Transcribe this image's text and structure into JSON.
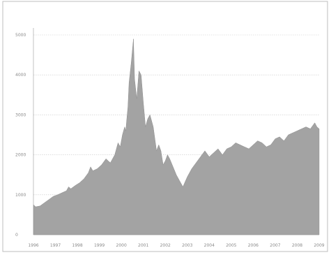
{
  "chart_data": {
    "type": "area",
    "title": "",
    "xlabel": "",
    "ylabel": "",
    "color": "#a3a3a3",
    "ylim": [
      0,
      5000
    ],
    "xlim": [
      1996,
      2009
    ],
    "grid": true,
    "yticks": [
      0,
      1000,
      2000,
      3000,
      4000,
      5000
    ],
    "yticklabels": [
      "0",
      "1000",
      "2000",
      "3000",
      "4000",
      "5000"
    ],
    "xticks": [
      1996,
      1997,
      1998,
      1999,
      2000,
      2001,
      2002,
      2003,
      2004,
      2005,
      2006,
      2007,
      2008,
      2009
    ],
    "xticklabels": [
      "1996",
      "1997",
      "1998",
      "1999",
      "2000",
      "2001",
      "2002",
      "2003",
      "2004",
      "2005",
      "2006",
      "2007",
      "2008",
      "2009"
    ],
    "series": [
      {
        "x": [
          1996.0,
          1996.1,
          1996.3,
          1996.5,
          1996.7,
          1996.9,
          1997.1,
          1997.3,
          1997.5,
          1997.6,
          1997.7,
          1997.9,
          1998.1,
          1998.3,
          1998.5,
          1998.6,
          1998.7,
          1998.9,
          1999.1,
          1999.3,
          1999.4,
          1999.5,
          1999.7,
          1999.85,
          1999.95,
          2000.05,
          2000.15,
          2000.2,
          2000.25,
          2000.3,
          2000.35,
          2000.45,
          2000.55,
          2000.6,
          2000.7,
          2000.8,
          2000.9,
          2001.0,
          2001.1,
          2001.2,
          2001.3,
          2001.45,
          2001.6,
          2001.7,
          2001.8,
          2001.9,
          2002.0,
          2002.1,
          2002.2,
          2002.35,
          2002.5,
          2002.65,
          2002.8,
          2003.0,
          2003.2,
          2003.4,
          2003.6,
          2003.8,
          2004.0,
          2004.2,
          2004.4,
          2004.6,
          2004.8,
          2005.0,
          2005.2,
          2005.4,
          2005.6,
          2005.8,
          2006.0,
          2006.2,
          2006.4,
          2006.6,
          2006.8,
          2007.0,
          2007.2,
          2007.4,
          2007.6,
          2007.8,
          2008.0,
          2008.2,
          2008.4,
          2008.6,
          2008.8,
          2008.9,
          2009.0
        ],
        "y": [
          750,
          700,
          720,
          800,
          880,
          960,
          1000,
          1050,
          1100,
          1200,
          1150,
          1230,
          1300,
          1400,
          1550,
          1700,
          1600,
          1650,
          1750,
          1900,
          1850,
          1800,
          2000,
          2300,
          2200,
          2500,
          2700,
          2600,
          2900,
          3200,
          3800,
          4300,
          4900,
          3900,
          3400,
          4100,
          4000,
          3300,
          2700,
          2900,
          3000,
          2700,
          2100,
          2250,
          2100,
          1750,
          1850,
          2000,
          1900,
          1700,
          1500,
          1350,
          1200,
          1450,
          1650,
          1800,
          1950,
          2100,
          1950,
          2050,
          2150,
          2000,
          2150,
          2200,
          2300,
          2250,
          2200,
          2150,
          2250,
          2350,
          2300,
          2200,
          2250,
          2400,
          2450,
          2350,
          2500,
          2550,
          2600,
          2650,
          2700,
          2650,
          2800,
          2700,
          2650
        ]
      }
    ]
  }
}
